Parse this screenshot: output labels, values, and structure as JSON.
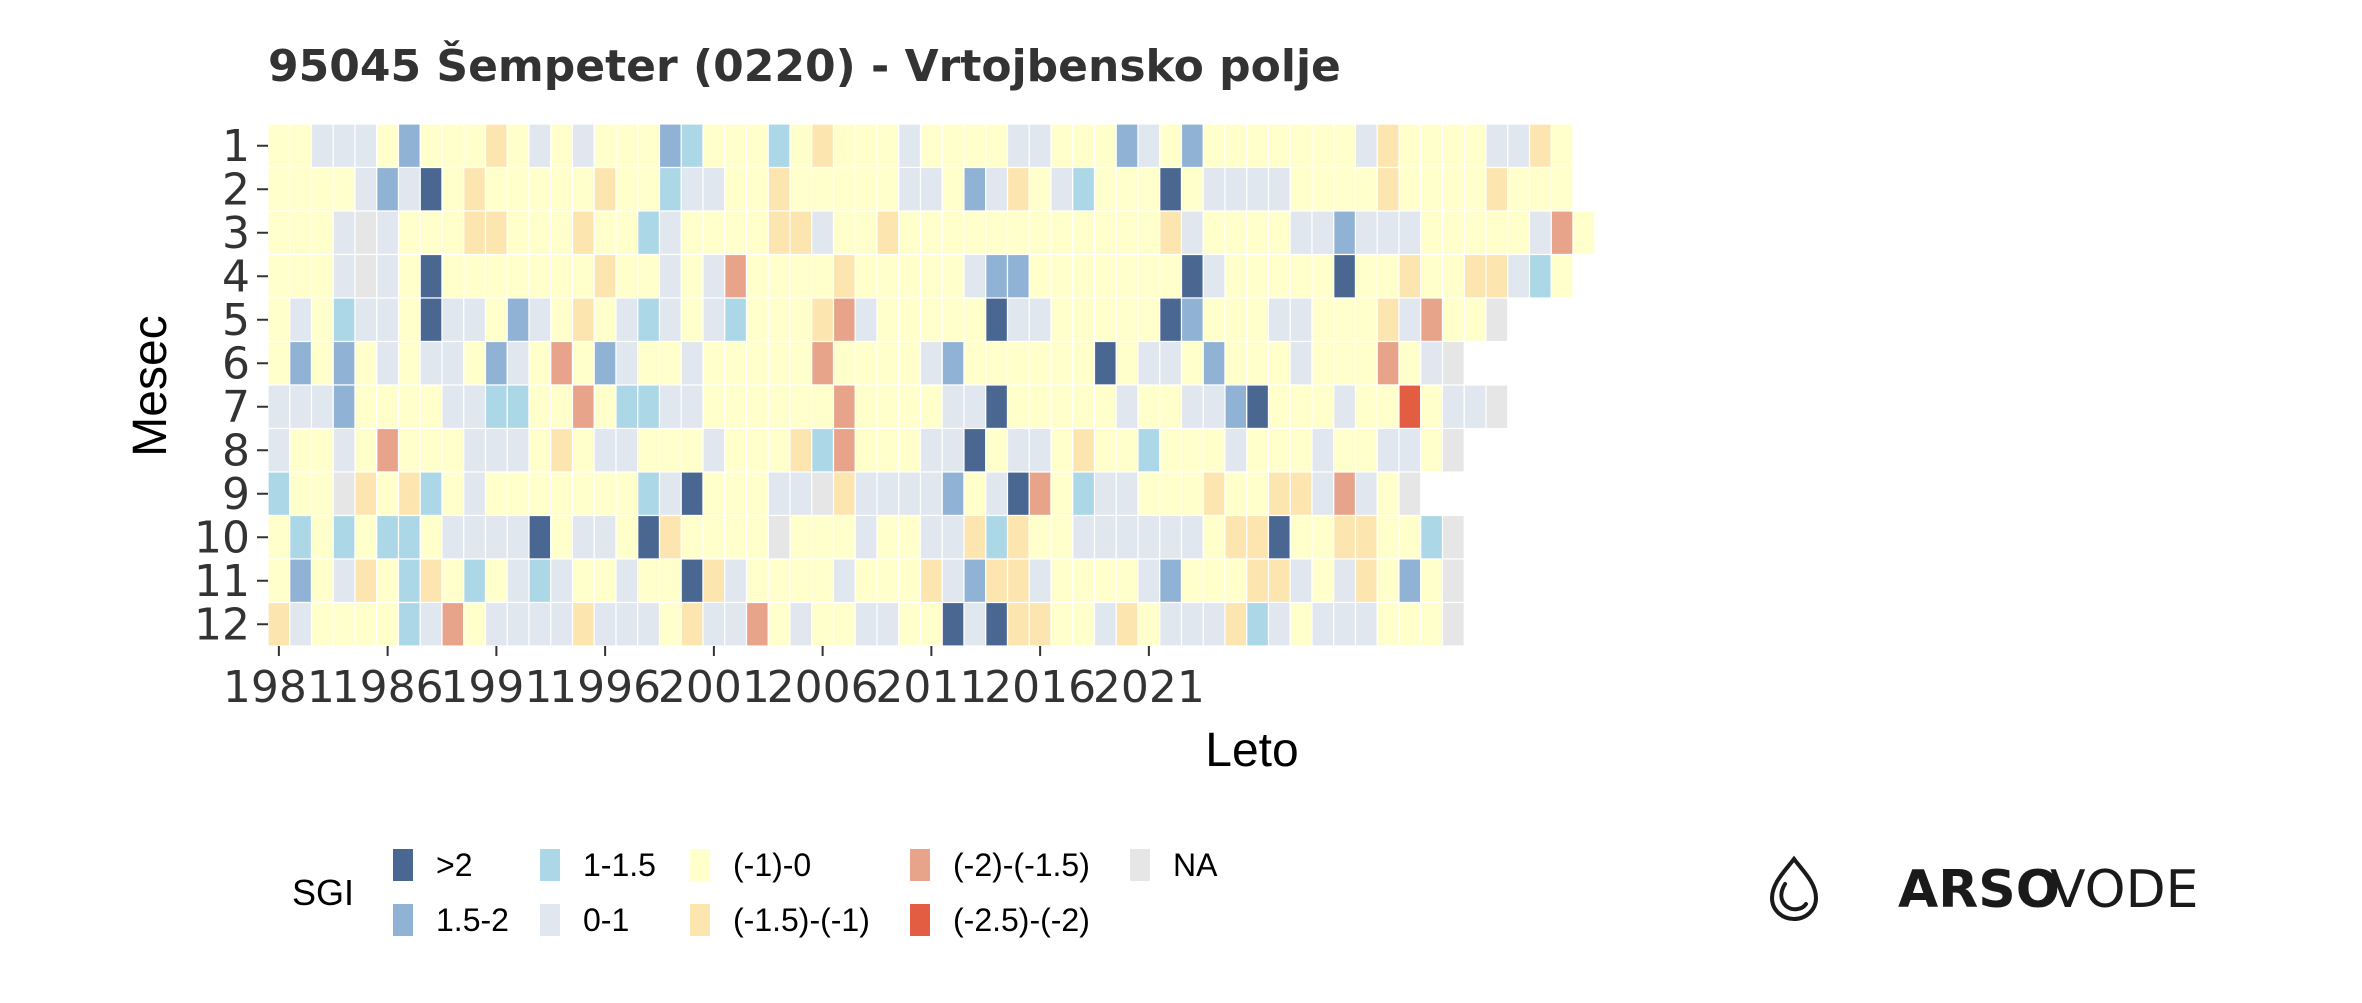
{
  "title": "95045 Šempeter (0220) - Vrtojbensko polje",
  "chart_data": {
    "type": "heatmap",
    "title": "95045 Šempeter (0220) - Vrtojbensko polje",
    "xlabel": "Leto",
    "ylabel": "Mesec",
    "x_range": [
      1981,
      2025
    ],
    "x_ticks": [
      "1981",
      "1986",
      "1991",
      "1996",
      "2001",
      "2006",
      "2011",
      "2016",
      "2021"
    ],
    "y_ticks": [
      "1",
      "2",
      "3",
      "4",
      "5",
      "6",
      "7",
      "8",
      "9",
      "10",
      "11",
      "12"
    ],
    "legend_title": "SGI",
    "legend_position": "bottom",
    "classes": [
      {
        "code": "a",
        "label": ">2",
        "color": "#4a6791"
      },
      {
        "code": "b",
        "label": "1.5-2",
        "color": "#90b2d4"
      },
      {
        "code": "c",
        "label": "1-1.5",
        "color": "#acd7e6"
      },
      {
        "code": "d",
        "label": "0-1",
        "color": "#e1e7ee"
      },
      {
        "code": "e",
        "label": "(-1)-0",
        "color": "#ffffcc"
      },
      {
        "code": "f",
        "label": "(-1.5)-(-1)",
        "color": "#fde5b0"
      },
      {
        "code": "g",
        "label": "(-2)-(-1.5)",
        "color": "#e8a48b"
      },
      {
        "code": "h",
        "label": "(-2.5)-(-2)",
        "color": "#e35d43"
      },
      {
        "code": "n",
        "label": "NA",
        "color": "#e6e6e6"
      }
    ],
    "rows": [
      "eedddebeeefededeeebceeecefeeedeeeeddeeebdebeeeeeeedfeeeeddfe",
      "eeeedbdaefeeeeefeecddeefeeeeeddebdfedceeeaeddddeeeefeeeefeee",
      "eeedndeeeffeeefeecdeeeeffdeefeeeeeeeeeeeefdeeeeddbdddeeeeedge",
      "eeedndeaeeeeeeefeededgeeeefeeeeedbbeeeeeeeadeeeeeaeefeeffdce",
      "edecddeaddebdefedcdedceeefgdeeeeeaddeeeeeabeeeddeeefdgeen",
      "ebebededdebdegebdeedeeeeegeeeedbeeeeeeaeddebeeedeeegedn",
      "dddbeeeeddcceegeccddeeeeeegeeeeddaeeeeedeeddbaeeedeeheddn",
      "deedegeeedddefeddeeedeeefcgeeeddaeddefeeceeedeeedeedden",
      "ceenfefcedeeeeeeecdaeeeddnfddddbedagecddeeefeeffdgden",
      "ecececceddddaeddeafeeeeneeedeeddfcfeeddddddeffaeeffeecn",
      "ebedfecfecedcdeedeeafdeeeedeeefdbffdeeeedbeeeffdedfeben",
      "fdeeeecdgeddddfdddefddgedeeddeeadaffeedfedddfcdedddeeen"
    ]
  },
  "brand": {
    "bold": "ARSO",
    "light": "VODE",
    "icon": "water-drop-icon"
  }
}
